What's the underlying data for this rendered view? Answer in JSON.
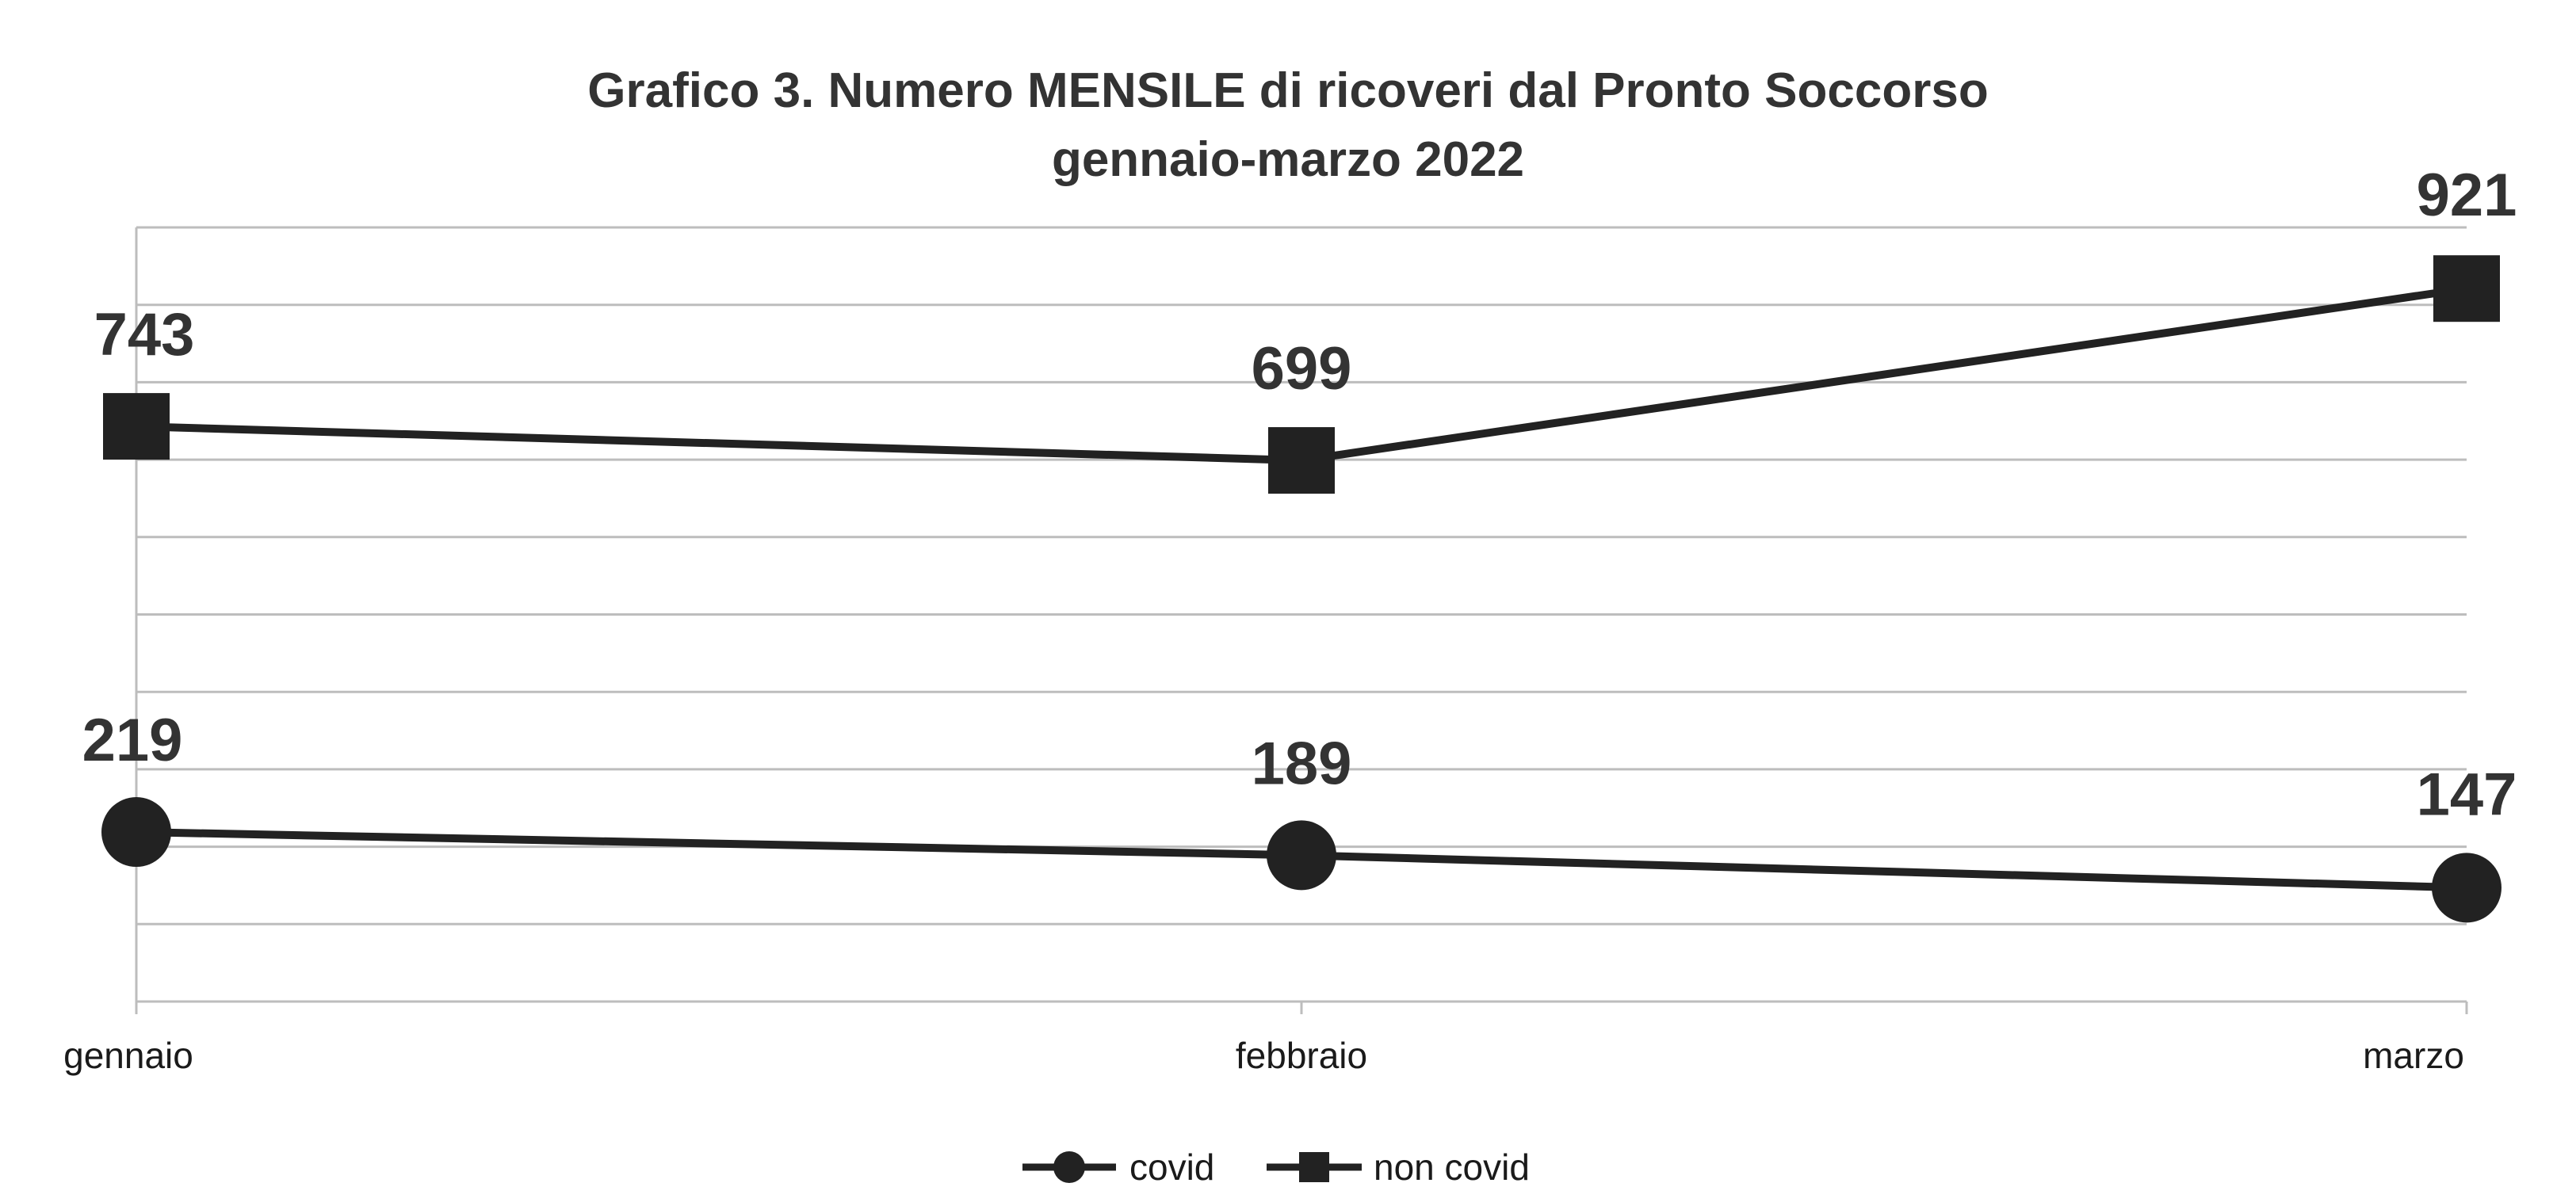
{
  "chart_data": {
    "type": "line",
    "title": "Grafico 3. Numero MENSILE di ricoveri dal Pronto Soccorso",
    "subtitle": "gennaio-marzo 2022",
    "xlabel": "",
    "ylabel": "",
    "categories": [
      "gennaio",
      "febbraio",
      "marzo"
    ],
    "ylim": [
      0,
      1000
    ],
    "grid": true,
    "legend_position": "bottom",
    "series": [
      {
        "name": "covid",
        "marker": "circle",
        "color": "#222222",
        "values": [
          219,
          189,
          147
        ],
        "labels": [
          "219",
          "189",
          "147"
        ]
      },
      {
        "name": "non covid",
        "marker": "square",
        "color": "#222222",
        "values": [
          743,
          699,
          921
        ],
        "labels": [
          "743",
          "699",
          "921"
        ]
      }
    ]
  }
}
